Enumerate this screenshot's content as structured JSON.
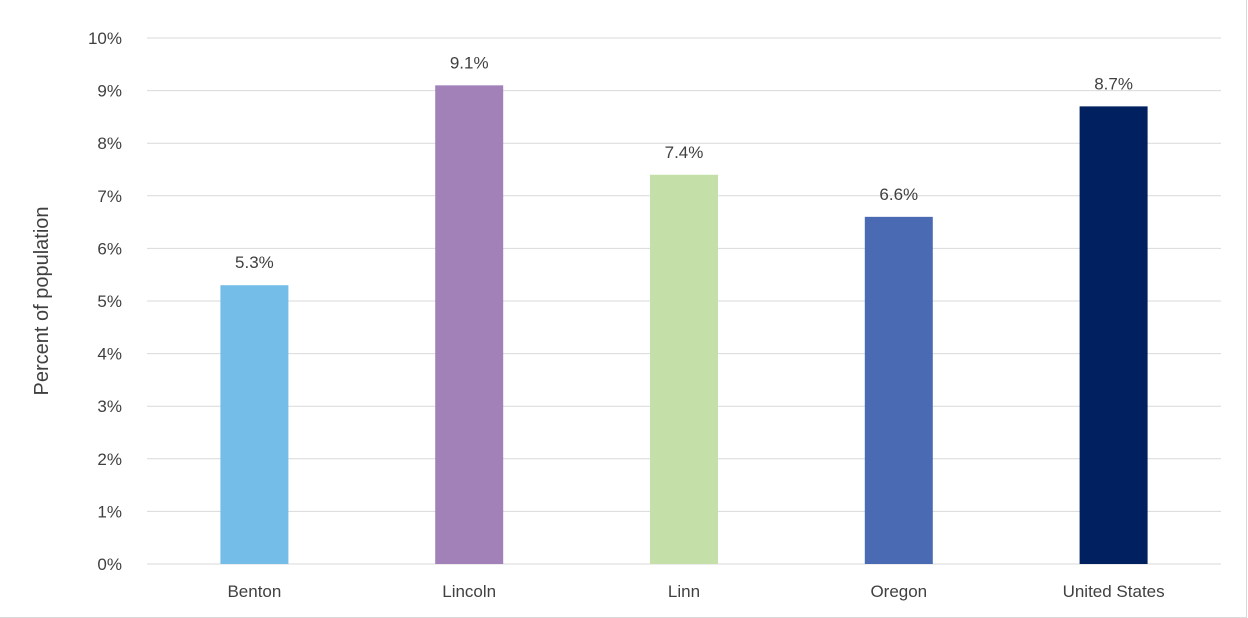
{
  "chart_data": {
    "type": "bar",
    "categories": [
      "Benton",
      "Lincoln",
      "Linn",
      "Oregon",
      "United States"
    ],
    "values": [
      5.3,
      9.1,
      7.4,
      6.6,
      8.7
    ],
    "value_labels": [
      "5.3%",
      "9.1%",
      "7.4%",
      "6.6%",
      "8.7%"
    ],
    "colors": [
      "#74bde8",
      "#a181b8",
      "#c4e0a8",
      "#4a6ab4",
      "#00205f"
    ],
    "title": "",
    "xlabel": "",
    "ylabel": "Percent of population",
    "ylim": [
      0,
      10
    ],
    "yticks": [
      0,
      1,
      2,
      3,
      4,
      5,
      6,
      7,
      8,
      9,
      10
    ],
    "ytick_labels": [
      "0%",
      "1%",
      "2%",
      "3%",
      "4%",
      "5%",
      "6%",
      "7%",
      "8%",
      "9%",
      "10%"
    ],
    "grid": true,
    "legend": "none"
  }
}
